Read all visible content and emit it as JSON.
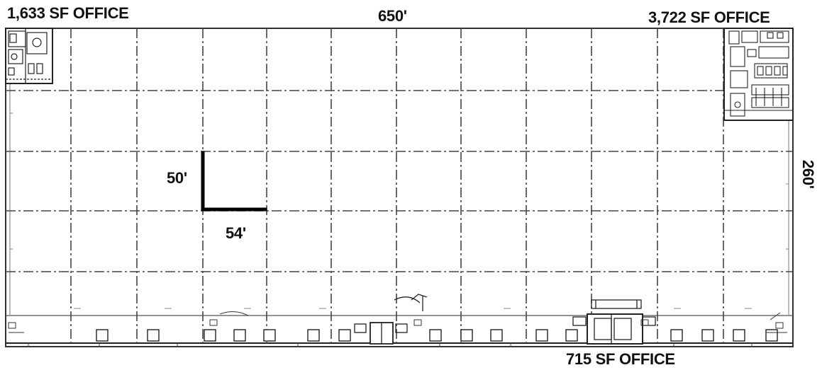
{
  "labels": {
    "office_top_left": "1,633 SF OFFICE",
    "overall_width": "650'",
    "office_top_right": "3,722 SF OFFICE",
    "overall_depth": "260'",
    "bay_depth": "50'",
    "bay_width": "54'",
    "office_bottom": "715 SF OFFICE"
  },
  "colors": {
    "line": "#333333",
    "grid": "#444444",
    "dimension": "#000000"
  }
}
